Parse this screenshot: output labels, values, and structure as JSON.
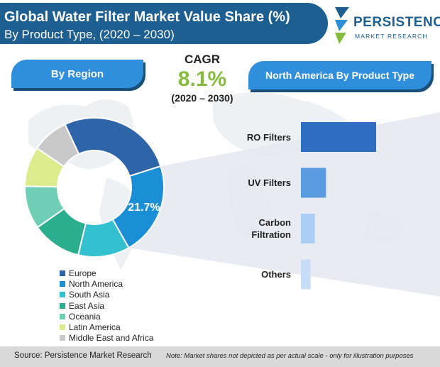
{
  "header": {
    "title": "Global Water Filter Market Value Share (%)",
    "subtitle": "By Product Type, (2020 – 2030)"
  },
  "logo": {
    "name": "PERSISTENCE",
    "sub": "MARKET RESEARCH"
  },
  "region_label": "By Region",
  "product_label": "North America By Product Type",
  "cagr": {
    "label": "CAGR",
    "value": "8.1%",
    "period": "(2020 – 2030)"
  },
  "colors": {
    "title_bar": "#1d5f91",
    "pill": "#2f8fdc",
    "bar": "#2e75c7",
    "accent_green": "#86bc3c"
  },
  "chart_data": [
    {
      "type": "pie",
      "title": "By Region",
      "highlight": {
        "label": "North America",
        "value_label": "21.7%"
      },
      "series": [
        {
          "name": "Europe",
          "value": 27,
          "color": "#2e64a8"
        },
        {
          "name": "North America",
          "value": 21.7,
          "color": "#1b8fd6"
        },
        {
          "name": "South Asia",
          "value": 12,
          "color": "#33c0cf"
        },
        {
          "name": "East Asia",
          "value": 11.5,
          "color": "#2aae8d"
        },
        {
          "name": "Oceania",
          "value": 10,
          "color": "#6fcfb5"
        },
        {
          "name": "Latin America",
          "value": 9.3,
          "color": "#dceb8c"
        },
        {
          "name": "Middle East and Africa",
          "value": 8.5,
          "color": "#c9c9c9"
        }
      ]
    },
    {
      "type": "bar",
      "orientation": "horizontal",
      "title": "North America By Product Type",
      "categories": [
        "RO Filters",
        "UV Filters",
        "Carbon\nFiltration",
        "Others"
      ],
      "category_lines": [
        [
          "RO Filters"
        ],
        [
          "UV Filters"
        ],
        [
          "Carbon",
          "Filtration"
        ],
        [
          "Others"
        ]
      ],
      "values": [
        54,
        18,
        10,
        7
      ],
      "colors": [
        "#2e6fc4",
        "#5b9be0",
        "#a9cdf3",
        "#c8def7"
      ],
      "xlim": [
        0,
        54
      ]
    }
  ],
  "footer": {
    "source": "Source: Persistence Market Research",
    "note": "Note: Market shares not depicted as per actual scale - only for illustration purposes"
  }
}
